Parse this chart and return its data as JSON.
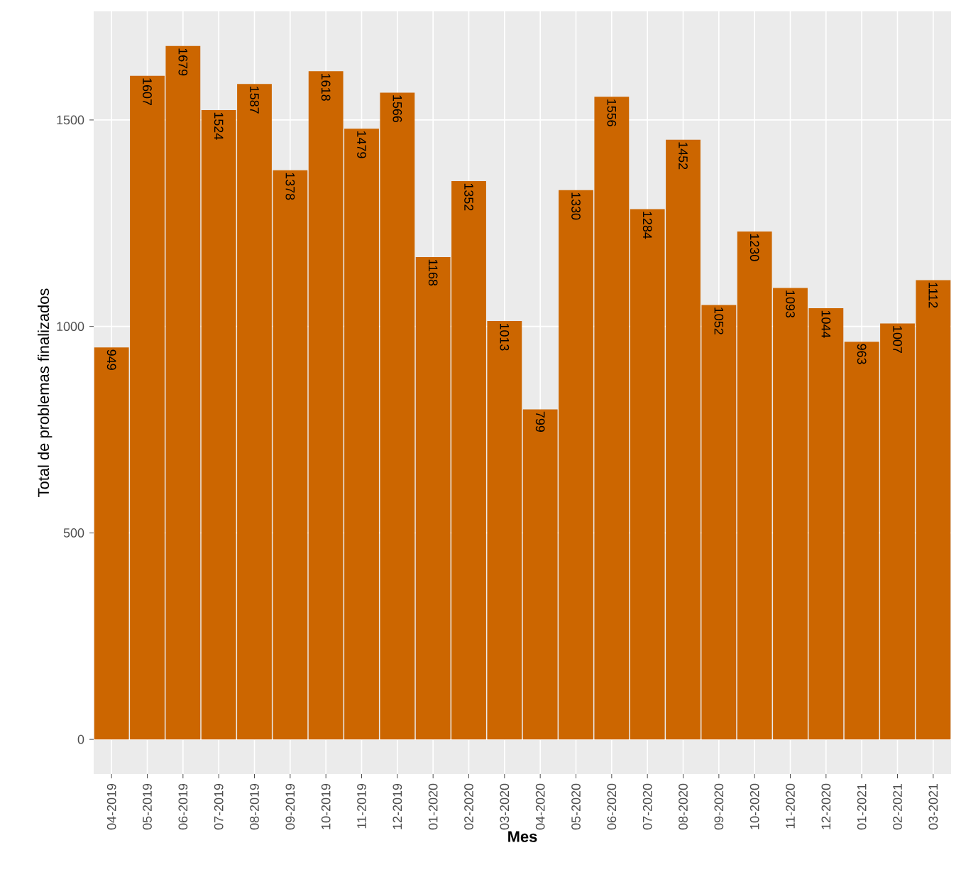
{
  "chart_data": {
    "type": "bar",
    "xlabel": "Mes",
    "ylabel": "Total de problemas finalizados",
    "categories": [
      "04-2019",
      "05-2019",
      "06-2019",
      "07-2019",
      "08-2019",
      "09-2019",
      "10-2019",
      "11-2019",
      "12-2019",
      "01-2020",
      "02-2020",
      "03-2020",
      "04-2020",
      "05-2020",
      "06-2020",
      "07-2020",
      "08-2020",
      "09-2020",
      "10-2020",
      "11-2020",
      "12-2020",
      "01-2021",
      "02-2021",
      "03-2021"
    ],
    "values": [
      949,
      1607,
      1679,
      1524,
      1587,
      1378,
      1618,
      1479,
      1566,
      1168,
      1352,
      1013,
      799,
      1330,
      1556,
      1284,
      1452,
      1052,
      1230,
      1093,
      1044,
      963,
      1007,
      1112
    ],
    "color": "#cc6600",
    "ylim": [
      -84,
      1763
    ],
    "yticks": [
      0,
      500,
      1000,
      1500
    ],
    "grid": true,
    "data_labels": true
  }
}
